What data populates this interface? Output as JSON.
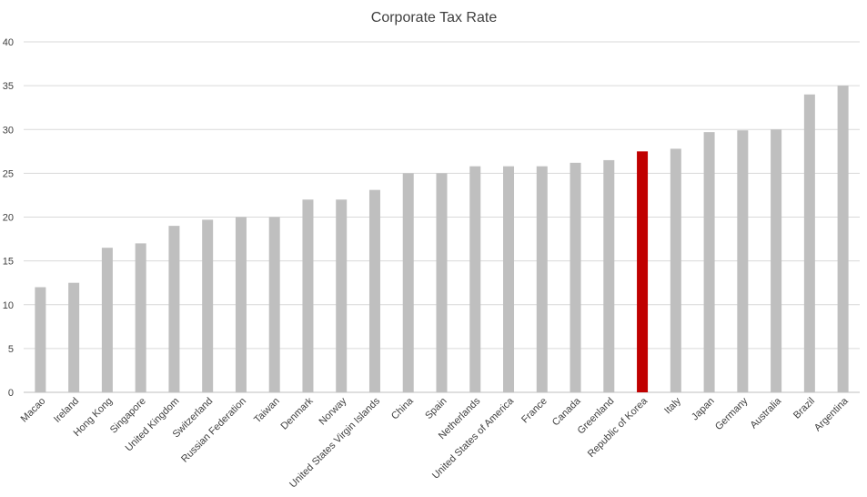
{
  "chart_data": {
    "type": "bar",
    "title": "Corporate Tax Rate",
    "xlabel": "",
    "ylabel": "",
    "ylim": [
      0,
      40
    ],
    "yticks": [
      0,
      5,
      10,
      15,
      20,
      25,
      30,
      35,
      40
    ],
    "grid": true,
    "legend": "none",
    "categories": [
      "Macao",
      "Ireland",
      "Hong Kong",
      "Singapore",
      "United Kingdom",
      "Switzerland",
      "Russian Federation",
      "Taiwan",
      "Denmark",
      "Norway",
      "United States Virgin Islands",
      "China",
      "Spain",
      "Netherlands",
      "United States of America",
      "France",
      "Canada",
      "Greenland",
      "Republic of Korea",
      "Italy",
      "Japan",
      "Germany",
      "Australia",
      "Brazil",
      "Argentina"
    ],
    "values": [
      12,
      12.5,
      16.5,
      17,
      19,
      19.7,
      20,
      20,
      22,
      22,
      23.1,
      25,
      25,
      25.8,
      25.8,
      25.8,
      26.2,
      26.5,
      27.5,
      27.8,
      29.7,
      29.9,
      30,
      34,
      35
    ],
    "highlight_category": "Republic of Korea",
    "colors": {
      "bar": "#bfbfbf",
      "highlight": "#c00000",
      "grid": "#d9d9d9",
      "text": "#404040"
    }
  }
}
